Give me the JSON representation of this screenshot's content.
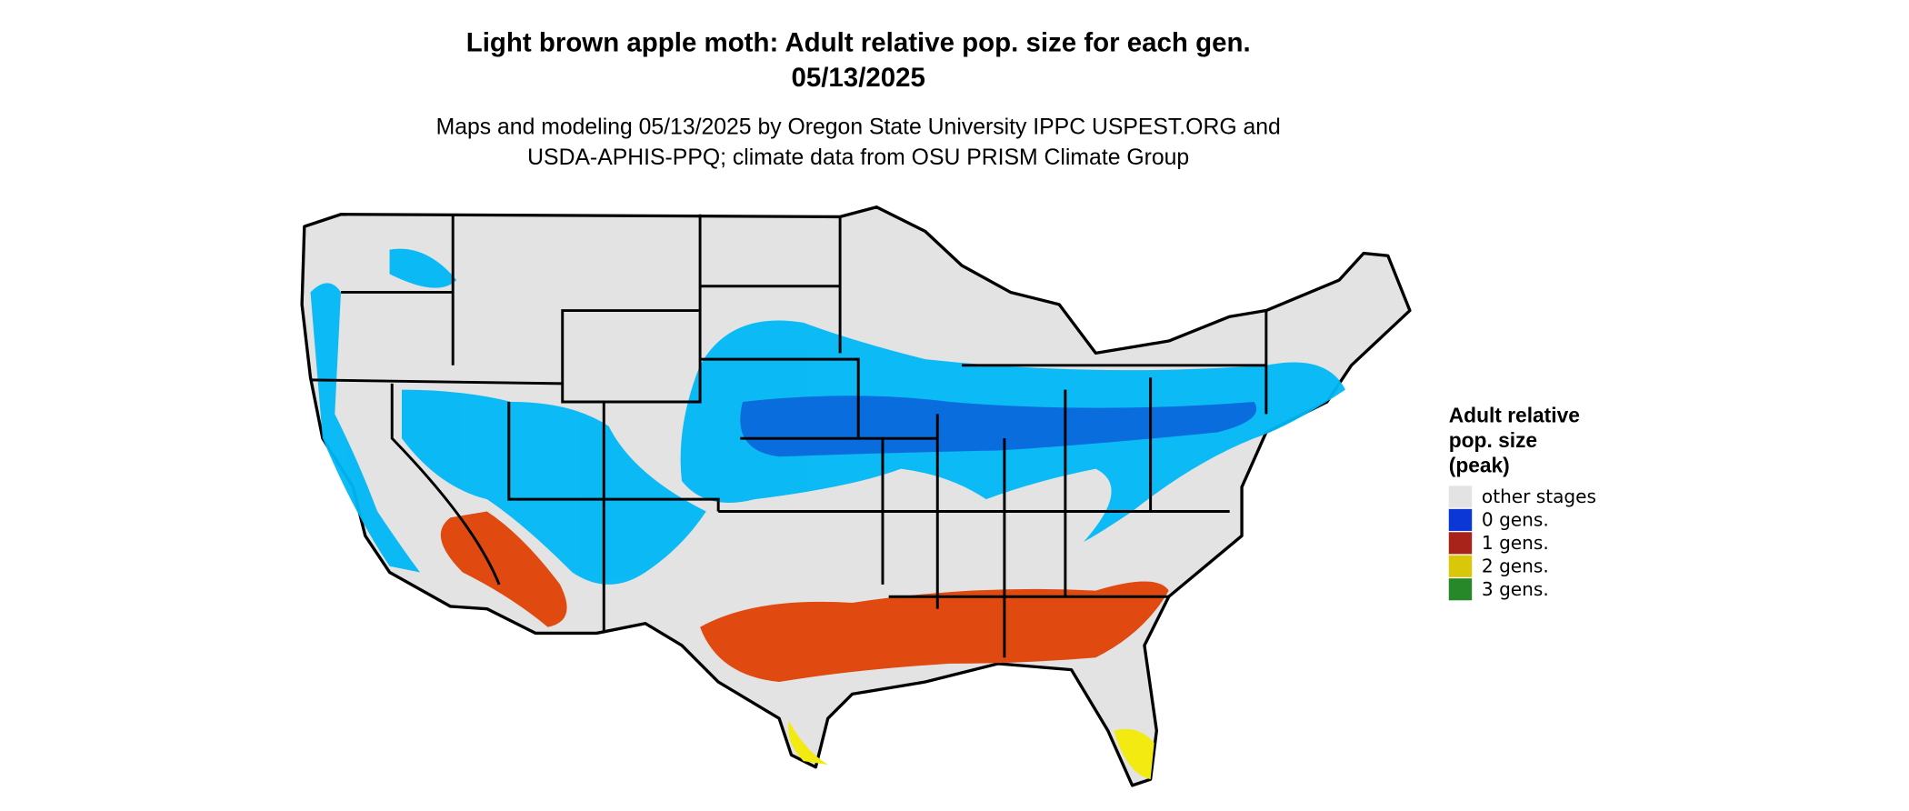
{
  "header": {
    "title": [
      "Light brown apple moth: Adult relative pop. size for each gen.",
      "05/13/2025"
    ],
    "subtitle": [
      "Maps and modeling 05/13/2025 by Oregon State University IPPC USPEST.ORG and",
      "USDA-APHIS-PPQ; climate data from OSU PRISM Climate Group"
    ]
  },
  "legend": {
    "title": [
      "Adult relative",
      "pop. size",
      "(peak)"
    ],
    "items": [
      {
        "label": "other stages",
        "color": "#e3e3e3"
      },
      {
        "label": "0 gens.",
        "color": "#0a37d6"
      },
      {
        "label": "1 gens.",
        "color": "#a8231a"
      },
      {
        "label": "2 gens.",
        "color": "#d9c80a"
      },
      {
        "label": "3 gens.",
        "color": "#27882a"
      }
    ]
  }
}
